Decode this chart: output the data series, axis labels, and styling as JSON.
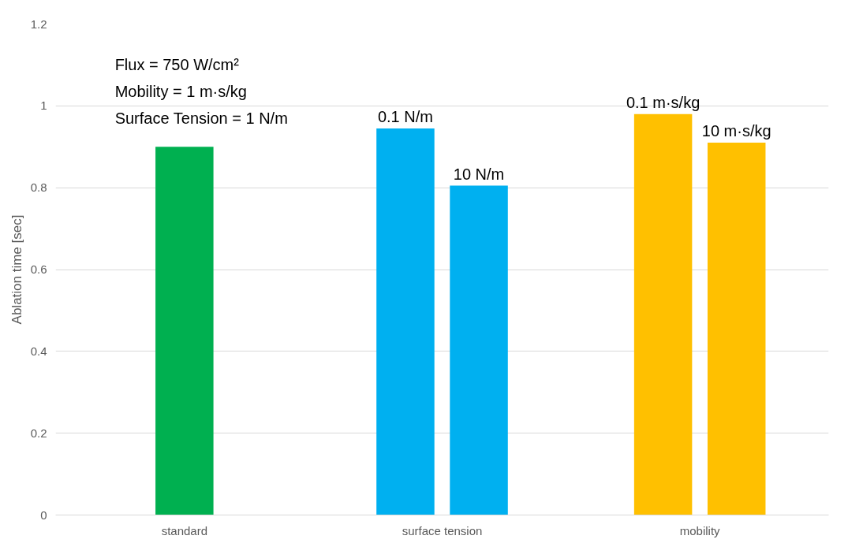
{
  "chart_data": {
    "type": "bar",
    "ylabel": "Ablation time [sec]",
    "categories": [
      "standard",
      "surface tension",
      "mobility"
    ],
    "series": [
      {
        "color": "#00b050",
        "values": [
          0.9,
          null,
          null
        ]
      },
      {
        "name": "0.1 N/m",
        "color": "#00b0f0",
        "values": [
          null,
          0.945,
          null
        ]
      },
      {
        "name": "10 N/m",
        "color": "#00b0f0",
        "values": [
          null,
          0.805,
          null
        ]
      },
      {
        "name": "0.1 m·s/kg",
        "color": "#ffc000",
        "values": [
          null,
          null,
          0.98
        ]
      },
      {
        "name": "10 m·s/kg",
        "color": "#ffc000",
        "values": [
          null,
          null,
          0.91
        ]
      }
    ],
    "ylim": [
      0,
      1.2
    ],
    "yticks": [
      0,
      0.2,
      0.4,
      0.6,
      0.8,
      1,
      1.2
    ],
    "grid": "y",
    "annotations": [
      "Flux =  750 W/cm²",
      "Mobility = 1 m·s/kg",
      "Surface Tension = 1 N/m"
    ]
  }
}
